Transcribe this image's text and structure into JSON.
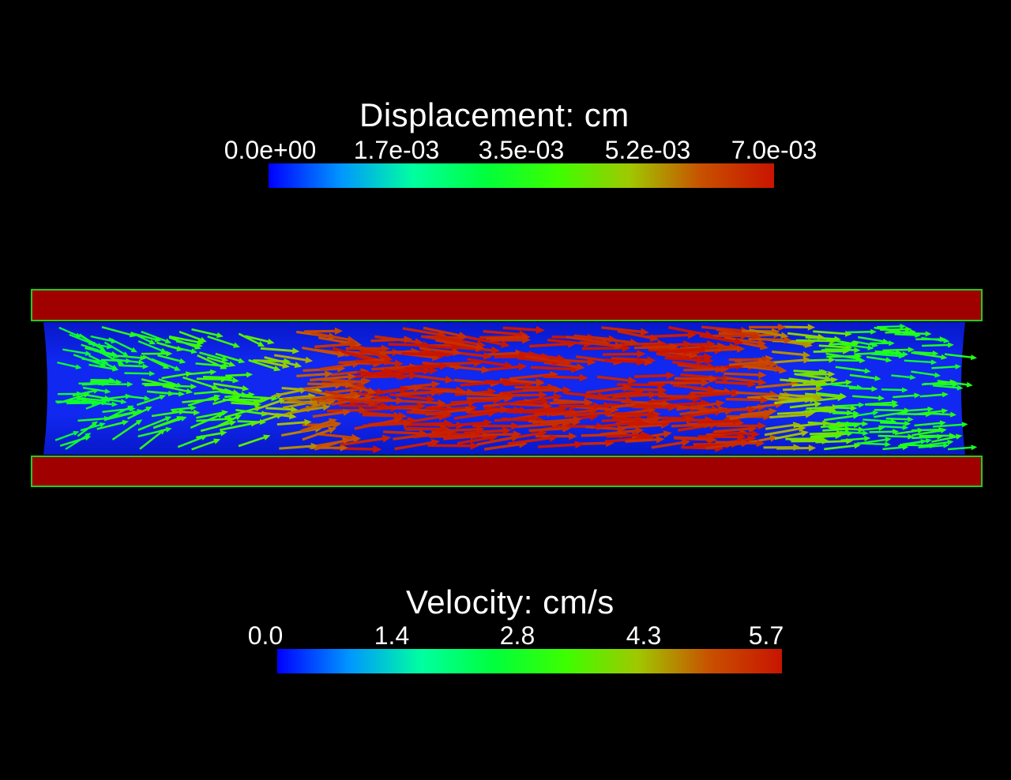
{
  "displacement_legend": {
    "title": "Displacement: cm",
    "ticks": [
      "0.0e+00",
      "1.7e-03",
      "3.5e-03",
      "5.2e-03",
      "7.0e-03"
    ]
  },
  "velocity_legend": {
    "title": "Velocity: cm/s",
    "ticks": [
      "0.0",
      "1.4",
      "2.8",
      "4.3",
      "5.7"
    ]
  },
  "colormap": [
    "#0000ff",
    "#0096ff",
    "#00ffa0",
    "#00ff3c",
    "#3cff00",
    "#a0c800",
    "#c85000",
    "#c81400"
  ],
  "colors": {
    "background": "#000000",
    "wall": "#a00000",
    "wall_edge": "#1ed21e",
    "lumen": "#0a1ef0",
    "lumen_dark": "#0000a0"
  }
}
